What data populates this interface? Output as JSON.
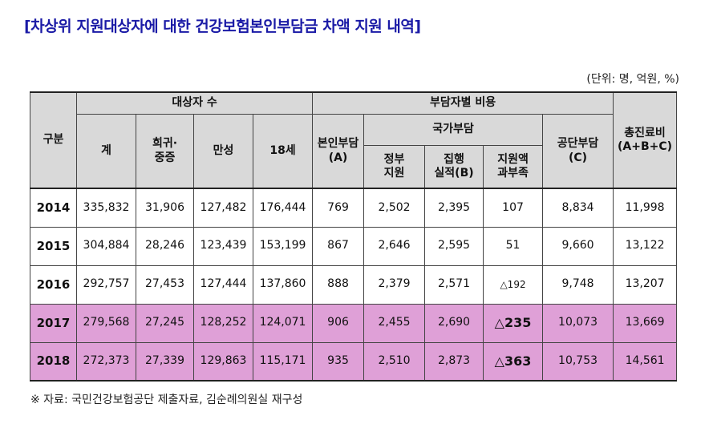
{
  "title": "[차상위 지원대상자에 대한 건강보험본인부담금 차액 지원 내역]",
  "unit": "(단위: 명, 억원, %)",
  "header": {
    "gubun": "구분",
    "recipients_group": "대상자 수",
    "cost_group": "부담자별 비용",
    "total": "계",
    "rare_severe_line1": "희귀·",
    "rare_severe_line2": "중증",
    "chronic": "만성",
    "under18": "18세",
    "self_pay_line1": "본인부담",
    "self_pay_line2": "(A)",
    "national_group": "국가부담",
    "gov_support_line1": "정부",
    "gov_support_line2": "지원",
    "actual_exec_line1": "집행",
    "actual_exec_line2": "실적(B)",
    "surplus_line1": "지원액",
    "surplus_line2": "과부족",
    "corp_pay_line1": "공단부담",
    "corp_pay_line2": "(C)",
    "total_cost_line1": "총진료비",
    "total_cost_line2": "(A+B+C)"
  },
  "rows": [
    {
      "year": "2014",
      "total": "335,832",
      "rare": "31,906",
      "chronic": "127,482",
      "u18": "176,444",
      "self": "769",
      "gov": "2,502",
      "exec": "2,395",
      "surplus": "107",
      "corp": "8,834",
      "all": "11,998"
    },
    {
      "year": "2015",
      "total": "304,884",
      "rare": "28,246",
      "chronic": "123,439",
      "u18": "153,199",
      "self": "867",
      "gov": "2,646",
      "exec": "2,595",
      "surplus": "51",
      "corp": "9,660",
      "all": "13,122"
    },
    {
      "year": "2016",
      "total": "292,757",
      "rare": "27,453",
      "chronic": "127,444",
      "u18": "137,860",
      "self": "888",
      "gov": "2,379",
      "exec": "2,571",
      "surplus": "△192",
      "corp": "9,748",
      "all": "13,207"
    },
    {
      "year": "2017",
      "total": "279,568",
      "rare": "27,245",
      "chronic": "128,252",
      "u18": "124,071",
      "self": "906",
      "gov": "2,455",
      "exec": "2,690",
      "surplus": "△235",
      "corp": "10,073",
      "all": "13,669"
    },
    {
      "year": "2018",
      "total": "272,373",
      "rare": "27,339",
      "chronic": "129,863",
      "u18": "115,171",
      "self": "935",
      "gov": "2,510",
      "exec": "2,873",
      "surplus": "△363",
      "corp": "10,753",
      "all": "14,561"
    }
  ],
  "highlight_color": "#dfa0d7",
  "header_color": "#d9d9d9",
  "title_color": "#1a1aa6",
  "note": "※ 자료: 국민건강보험공단 제출자료, 김순례의원실 재구성"
}
